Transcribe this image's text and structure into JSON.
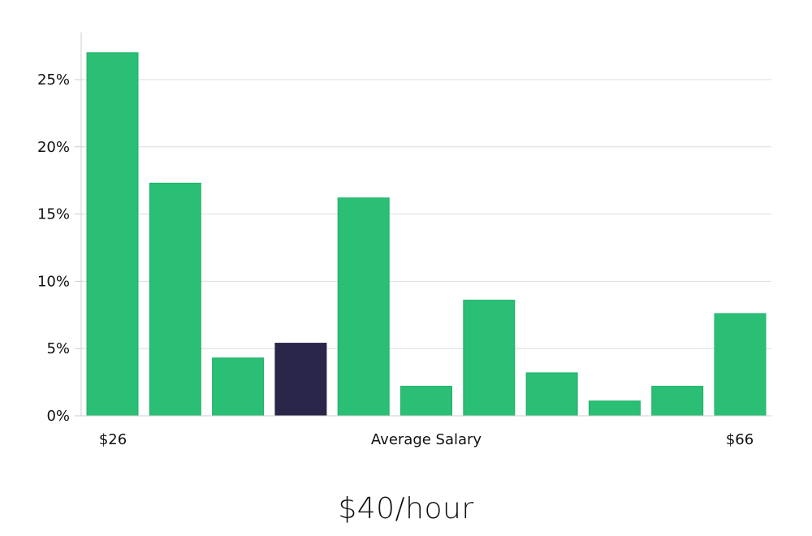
{
  "chart_data": {
    "type": "bar",
    "xlabel": "Average Salary",
    "x_start_label": "$26",
    "x_end_label": "$66",
    "ylim": [
      0,
      0.285
    ],
    "y_ticks": [
      0,
      0.05,
      0.1,
      0.15,
      0.2,
      0.25
    ],
    "y_tick_labels": [
      "0%",
      "5%",
      "10%",
      "15%",
      "20%",
      "25%"
    ],
    "grid": true,
    "values": [
      0.27,
      0.173,
      0.043,
      0.054,
      0.162,
      0.022,
      0.086,
      0.032,
      0.011,
      0.022,
      0.076
    ],
    "highlight_index": 3,
    "colors": {
      "bar": "#2abf74",
      "bar_edge": "#22b06a",
      "highlight": "#292649",
      "grid": "#dddddd",
      "axis": "#cccccc"
    }
  },
  "summary": {
    "value_label": "$40/hour"
  }
}
